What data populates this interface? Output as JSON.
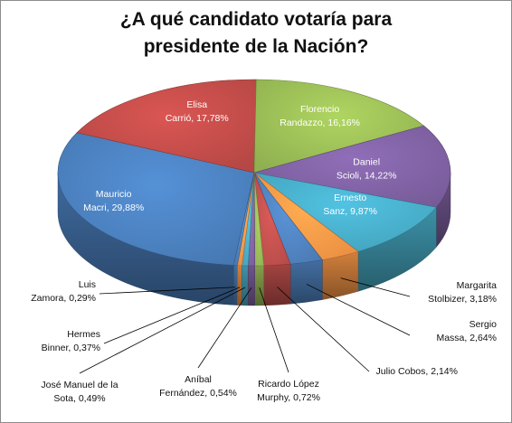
{
  "chart_data": {
    "type": "pie",
    "title_lines": [
      "¿A qué candidato votaría para",
      "presidente de la Nación?"
    ],
    "slices": [
      {
        "name": "Mauricio Macri",
        "label": [
          "Mauricio",
          "Macri, 29,88%"
        ],
        "value": 29.88,
        "color": "#4A7EBB",
        "label_style": "inside"
      },
      {
        "name": "Elisa Carrió",
        "label": [
          "Elisa",
          "Carrió, 17,78%"
        ],
        "value": 17.78,
        "color": "#BE4B48",
        "label_style": "inside"
      },
      {
        "name": "Florencio Randazzo",
        "label": [
          "Florencio",
          "Randazzo, 16,16%"
        ],
        "value": 16.16,
        "color": "#98B954",
        "label_style": "inside"
      },
      {
        "name": "Daniel Scioli",
        "label": [
          "Daniel",
          "Scioli, 14,22%"
        ],
        "value": 14.22,
        "color": "#7D60A0",
        "label_style": "inside"
      },
      {
        "name": "Ernesto Sanz",
        "label": [
          "Ernesto",
          "Sanz, 9,87%"
        ],
        "value": 9.87,
        "color": "#46AAC5",
        "label_style": "inside"
      },
      {
        "name": "Margarita Stolbizer",
        "label": [
          "Margarita",
          "Stolbizer, 3,18%"
        ],
        "value": 3.18,
        "color": "#F79646",
        "label_style": "outside"
      },
      {
        "name": "Sergio Massa",
        "label": [
          "Sergio",
          "Massa, 2,64%"
        ],
        "value": 2.64,
        "color": "#4F81BD",
        "label_style": "outside"
      },
      {
        "name": "Julio Cobos",
        "label": [
          "Julio Cobos, 2,14%"
        ],
        "value": 2.14,
        "color": "#C0504D",
        "label_style": "outside"
      },
      {
        "name": "Ricardo López Murphy",
        "label": [
          "Ricardo López",
          "Murphy, 0,72%"
        ],
        "value": 0.72,
        "color": "#9BBB59",
        "label_style": "outside"
      },
      {
        "name": "Aníbal Fernández",
        "label": [
          "Aníbal",
          "Fernández, 0,54%"
        ],
        "value": 0.54,
        "color": "#8064A2",
        "label_style": "outside"
      },
      {
        "name": "José Manuel de la Sota",
        "label": [
          "José Manuel de la",
          "Sota, 0,49%"
        ],
        "value": 0.49,
        "color": "#4BACC6",
        "label_style": "outside"
      },
      {
        "name": "Hermes Binner",
        "label": [
          "Hermes",
          "Binner, 0,37%"
        ],
        "value": 0.37,
        "color": "#F79646",
        "label_style": "outside"
      },
      {
        "name": "Luis Zamora",
        "label": [
          "Luis",
          "Zamora, 0,29%"
        ],
        "value": 0.29,
        "color": "#4F81BD",
        "label_style": "outside"
      }
    ]
  }
}
